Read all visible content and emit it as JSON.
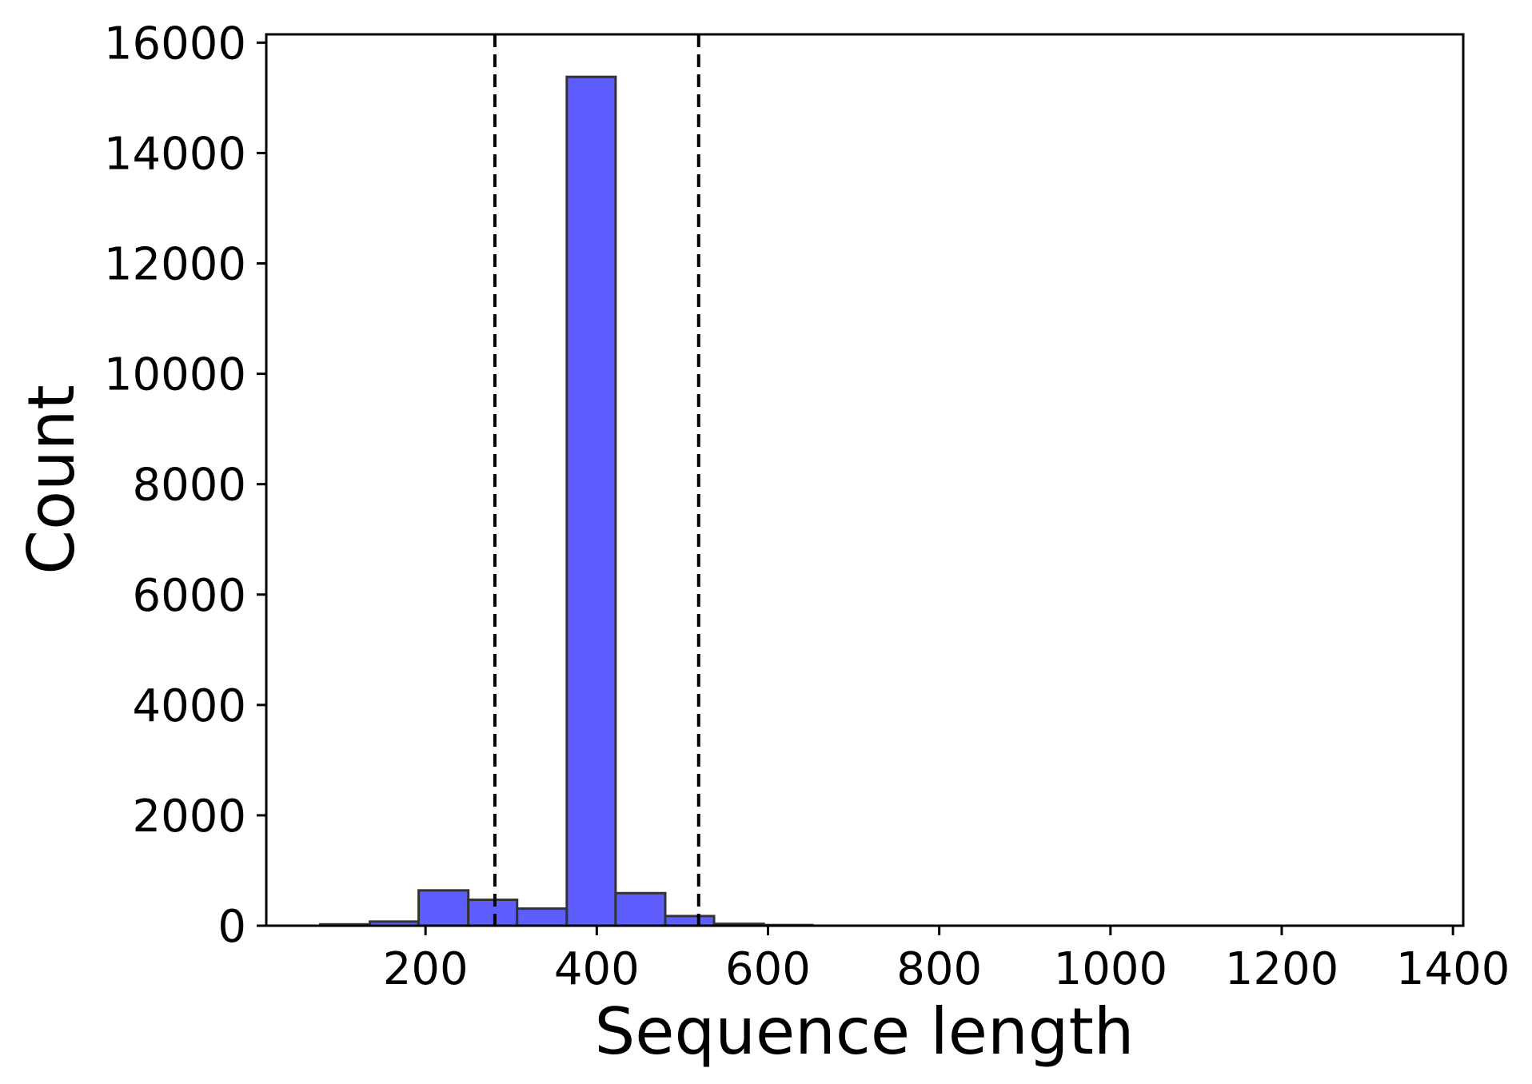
{
  "chart_data": {
    "type": "bar",
    "xlabel": "Sequence length",
    "ylabel": "Count",
    "xlim": [
      14,
      1412
    ],
    "ylim": [
      0,
      16150
    ],
    "bar_color": "#5e5eff",
    "bar_edge_color": "#333333",
    "grid": false,
    "bins": [
      {
        "x0": 77,
        "x1": 135,
        "count": 25
      },
      {
        "x0": 135,
        "x1": 192,
        "count": 75
      },
      {
        "x0": 192,
        "x1": 250,
        "count": 640
      },
      {
        "x0": 250,
        "x1": 307,
        "count": 470
      },
      {
        "x0": 307,
        "x1": 365,
        "count": 310
      },
      {
        "x0": 365,
        "x1": 422,
        "count": 15380
      },
      {
        "x0": 422,
        "x1": 480,
        "count": 590
      },
      {
        "x0": 480,
        "x1": 537,
        "count": 175
      },
      {
        "x0": 537,
        "x1": 595,
        "count": 35
      },
      {
        "x0": 595,
        "x1": 652,
        "count": 12
      }
    ],
    "vlines": [
      {
        "x": 281,
        "style": "dashed",
        "color": "#000000"
      },
      {
        "x": 519,
        "style": "dashed",
        "color": "#000000"
      }
    ],
    "xticks": [
      200,
      400,
      600,
      800,
      1000,
      1200,
      1400
    ],
    "xtick_labels": [
      "200",
      "400",
      "600",
      "800",
      "1000",
      "1200",
      "1400"
    ],
    "yticks": [
      0,
      2000,
      4000,
      6000,
      8000,
      10000,
      12000,
      14000,
      16000
    ],
    "ytick_labels": [
      "0",
      "2000",
      "4000",
      "6000",
      "8000",
      "10000",
      "12000",
      "14000",
      "16000"
    ]
  }
}
